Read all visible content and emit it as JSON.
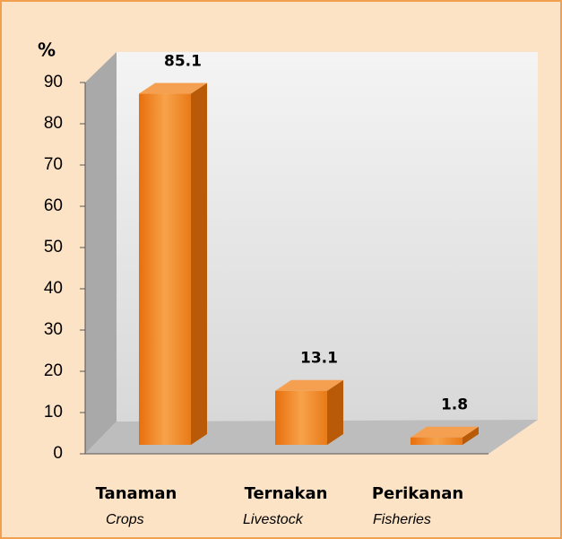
{
  "chart_data": {
    "type": "bar3d",
    "y_label": "%",
    "categories": [
      "Tanaman",
      "Ternakan",
      "Perikanan"
    ],
    "categories_en": [
      "Crops",
      "Livestock",
      "Fisheries"
    ],
    "values": [
      85.1,
      13.1,
      1.8
    ],
    "color": "#f28a1e",
    "ylim": [
      0,
      90
    ],
    "yticks": [
      0,
      10,
      20,
      30,
      40,
      50,
      60,
      70,
      80,
      90
    ],
    "grid": false
  }
}
